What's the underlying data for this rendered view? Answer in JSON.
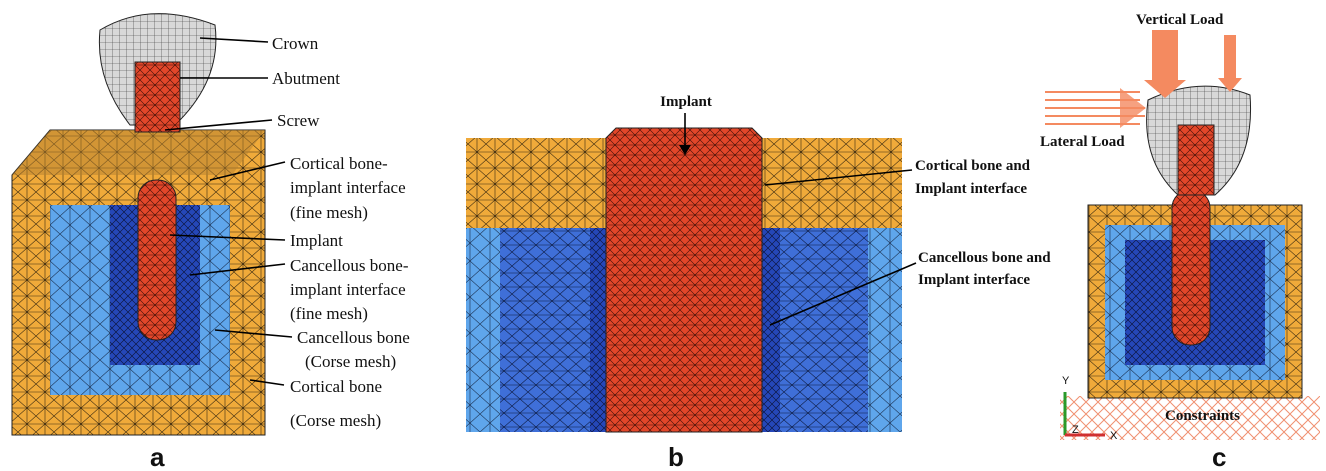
{
  "panels": [
    {
      "letter": "a",
      "labels": [
        {
          "lines": [
            "Crown"
          ]
        },
        {
          "lines": [
            "Abutment"
          ]
        },
        {
          "lines": [
            "Screw"
          ]
        },
        {
          "lines": [
            "Cortical bone-",
            "implant interface",
            "(fine mesh)"
          ]
        },
        {
          "lines": [
            "Implant"
          ]
        },
        {
          "lines": [
            "Cancellous bone-",
            "implant interface",
            "(fine mesh)"
          ]
        },
        {
          "lines": [
            "Cancellous bone",
            "(Corse mesh)"
          ]
        },
        {
          "lines": [
            "Cortical bone",
            "(Corse mesh)"
          ]
        }
      ]
    },
    {
      "letter": "b",
      "labels": [
        {
          "lines": [
            "Implant"
          ]
        },
        {
          "lines": [
            "Cortical bone and",
            "Implant interface"
          ]
        },
        {
          "lines": [
            "Cancellous bone and",
            "Implant interface"
          ]
        }
      ]
    },
    {
      "letter": "c",
      "labels": [
        {
          "lines": [
            "Vertical Load"
          ]
        },
        {
          "lines": [
            "Lateral Load"
          ]
        },
        {
          "lines": [
            "Constraints"
          ]
        }
      ],
      "axes": [
        "Y",
        "Z",
        "X"
      ]
    }
  ]
}
